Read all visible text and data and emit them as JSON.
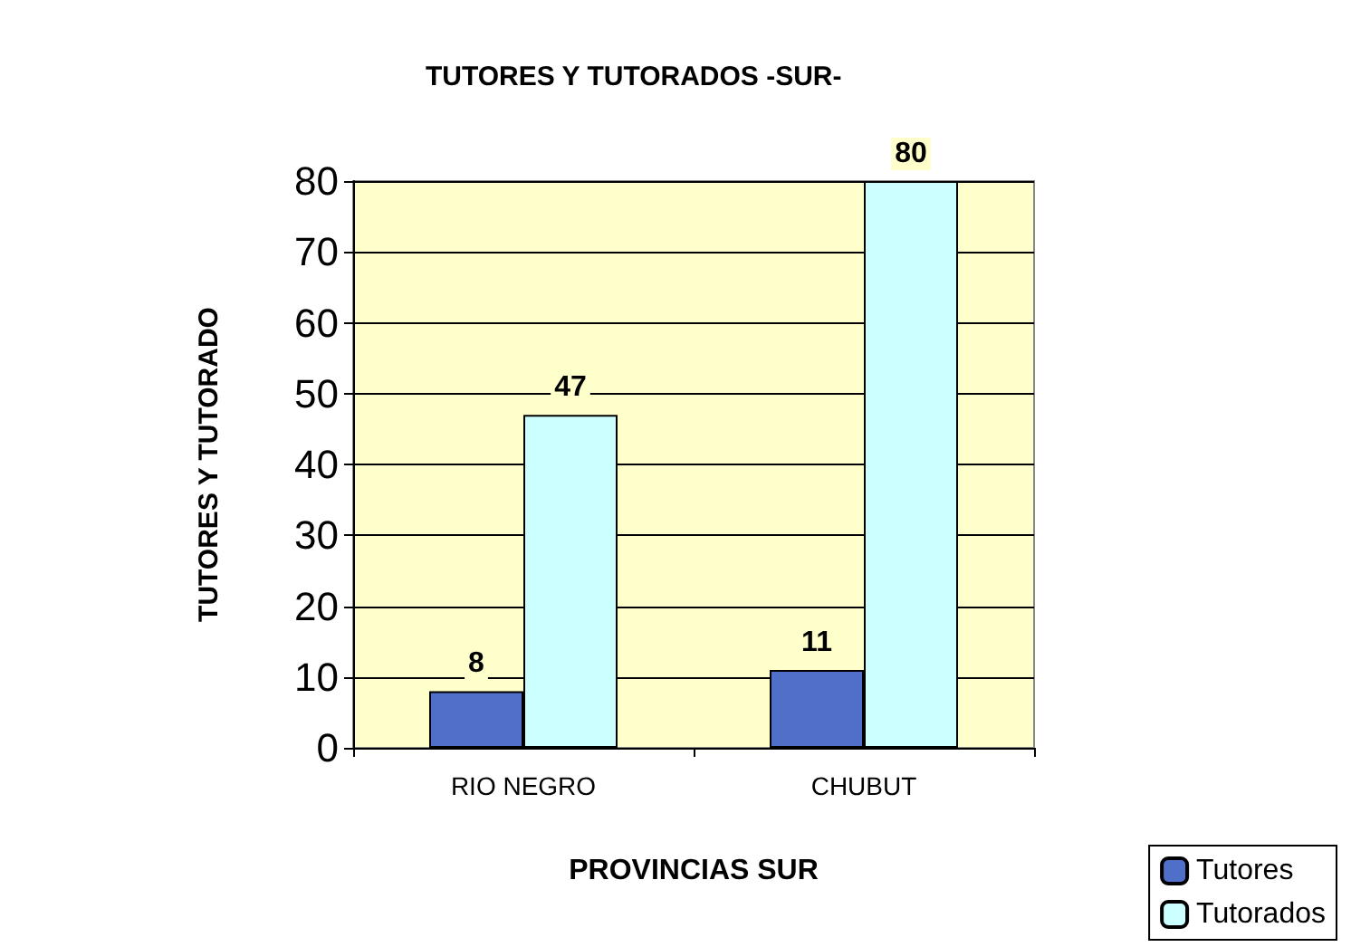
{
  "chart_data": {
    "type": "bar",
    "title": "TUTORES Y TUTORADOS -SUR-",
    "xlabel": "PROVINCIAS SUR",
    "ylabel": "TUTORES Y TUTORADO",
    "categories": [
      "RIO NEGRO",
      "CHUBUT"
    ],
    "series": [
      {
        "name": "Tutores",
        "color": "#4f6fc8",
        "values": [
          8,
          11
        ]
      },
      {
        "name": "Tutorados",
        "color": "#ccffff",
        "values": [
          47,
          80
        ]
      }
    ],
    "ylim": [
      0,
      80
    ],
    "yticks": [
      0,
      10,
      20,
      30,
      40,
      50,
      60,
      70,
      80
    ],
    "grid": "y",
    "data_labels": true,
    "legend": "bottom right"
  }
}
